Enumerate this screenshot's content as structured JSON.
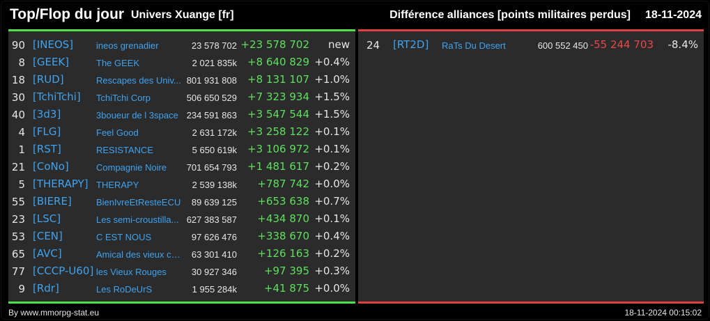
{
  "header": {
    "title": "Top/Flop du jour",
    "universe": "Univers Xuange [fr]",
    "subtitle": "Différence alliances [points militaires perdus]",
    "date": "18-11-2024"
  },
  "top": [
    {
      "rank": "90",
      "tag": "[INEOS]",
      "name": "ineos grenadier",
      "points": "23 578 702",
      "diff": "+23 578 702",
      "pct": "new"
    },
    {
      "rank": "8",
      "tag": "[GEEK]",
      "name": "The GEEK",
      "points": "2 021 835k",
      "diff": "+8 640 829",
      "pct": "+0.4%"
    },
    {
      "rank": "18",
      "tag": "[RUD]",
      "name": "Rescapes des Univ...",
      "points": "801 931 808",
      "diff": "+8 131 107",
      "pct": "+1.0%"
    },
    {
      "rank": "30",
      "tag": "[TchiTchi]",
      "name": "TchiTchi Corp",
      "points": "506 650 529",
      "diff": "+7 323 934",
      "pct": "+1.5%"
    },
    {
      "rank": "40",
      "tag": "[3d3]",
      "name": "3boueur de l 3space",
      "points": "234 591 863",
      "diff": "+3 547 544",
      "pct": "+1.5%"
    },
    {
      "rank": "4",
      "tag": "[FLG]",
      "name": "Feel Good",
      "points": "2 631 172k",
      "diff": "+3 258 122",
      "pct": "+0.1%"
    },
    {
      "rank": "1",
      "tag": "[RST]",
      "name": "RESISTANCE",
      "points": "5 650 619k",
      "diff": "+3 106 972",
      "pct": "+0.1%"
    },
    {
      "rank": "21",
      "tag": "[CoNo]",
      "name": "Compagnie Noire",
      "points": "701 654 793",
      "diff": "+1 481 617",
      "pct": "+0.2%"
    },
    {
      "rank": "5",
      "tag": "[THERAPY]",
      "name": "THERAPY",
      "points": "2 539 138k",
      "diff": "+787 742",
      "pct": "+0.0%"
    },
    {
      "rank": "55",
      "tag": "[BIERE]",
      "name": "BienIvreEtResteECU",
      "points": "89 639 125",
      "diff": "+653 638",
      "pct": "+0.7%"
    },
    {
      "rank": "23",
      "tag": "[LSC]",
      "name": "Les semi-croustilla...",
      "points": "627 383 587",
      "diff": "+434 870",
      "pct": "+0.1%"
    },
    {
      "rank": "53",
      "tag": "[CEN]",
      "name": "C EST NOUS",
      "points": "97 626 476",
      "diff": "+338 670",
      "pct": "+0.4%"
    },
    {
      "rank": "65",
      "tag": "[AVC]",
      "name": "Amical des vieux co...",
      "points": "63 301 410",
      "diff": "+126 163",
      "pct": "+0.2%"
    },
    {
      "rank": "77",
      "tag": "[CCCP-U60]",
      "name": "les Vieux Rouges",
      "points": "30 927 346",
      "diff": "+97 395",
      "pct": "+0.3%"
    },
    {
      "rank": "9",
      "tag": "[Rdr]",
      "name": "Les RoDeUrS",
      "points": "1 955 284k",
      "diff": "+41 875",
      "pct": "+0.0%"
    }
  ],
  "flop": [
    {
      "rank": "24",
      "tag": "[RT2D]",
      "name": "RaTs Du Desert",
      "points": "600 552 450",
      "diff": "-55 244 703",
      "pct": "-8.4%"
    }
  ],
  "footer": {
    "source": "By www.mmorpg-stat.eu",
    "timestamp": "18-11-2024 00:15:02"
  },
  "colors": {
    "accent_top": "#4ce04c",
    "accent_flop": "#e0403f",
    "tag": "#3fa3f0"
  }
}
